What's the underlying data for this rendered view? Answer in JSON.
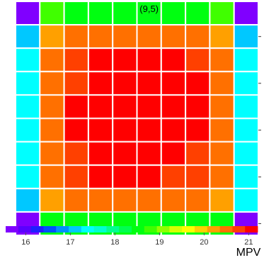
{
  "chart_data": {
    "type": "heatmap",
    "title": "(9,5)",
    "rows": 10,
    "cols": 10,
    "values": [
      [
        15.6,
        18.8,
        18.4,
        18.4,
        18.4,
        18.5,
        18.4,
        18.4,
        18.8,
        15.6
      ],
      [
        17.2,
        20.3,
        20.6,
        20.6,
        20.6,
        20.6,
        20.6,
        20.6,
        20.3,
        17.2
      ],
      [
        17.4,
        20.6,
        20.9,
        21.0,
        21.1,
        21.1,
        21.0,
        20.9,
        20.6,
        17.4
      ],
      [
        17.4,
        20.5,
        20.9,
        21.1,
        21.1,
        21.1,
        21.1,
        21.0,
        20.6,
        17.4
      ],
      [
        17.4,
        20.6,
        21.0,
        21.1,
        21.2,
        21.2,
        21.1,
        21.0,
        20.6,
        17.4
      ],
      [
        17.5,
        20.6,
        21.0,
        21.1,
        21.2,
        21.1,
        21.2,
        21.0,
        20.6,
        17.4
      ],
      [
        17.4,
        20.6,
        20.9,
        21.1,
        21.1,
        21.1,
        21.1,
        20.9,
        20.5,
        17.4
      ],
      [
        17.4,
        20.5,
        20.9,
        21.0,
        21.0,
        21.0,
        20.9,
        20.9,
        20.6,
        17.4
      ],
      [
        17.2,
        20.1,
        20.6,
        20.5,
        20.6,
        20.6,
        20.6,
        20.6,
        20.3,
        17.3
      ],
      [
        15.7,
        18.4,
        18.5,
        18.5,
        18.5,
        18.4,
        18.4,
        18.4,
        18.4,
        15.7
      ]
    ],
    "colorbar": {
      "min": 15.55,
      "max": 21.2,
      "ticks": [
        "16",
        "17",
        "18",
        "19",
        "20",
        "21"
      ],
      "label": "MPV",
      "colors": [
        "#8000ff",
        "#5a00ff",
        "#1f1fff",
        "#0050ff",
        "#0090ff",
        "#00c8ff",
        "#00ffff",
        "#00ffd0",
        "#00ff90",
        "#00ff50",
        "#00ff10",
        "#40ff00",
        "#90ff00",
        "#d8ff00",
        "#ffff00",
        "#ffd000",
        "#ffa000",
        "#ff7000",
        "#ff4000",
        "#ff0000"
      ]
    },
    "grid": true
  }
}
